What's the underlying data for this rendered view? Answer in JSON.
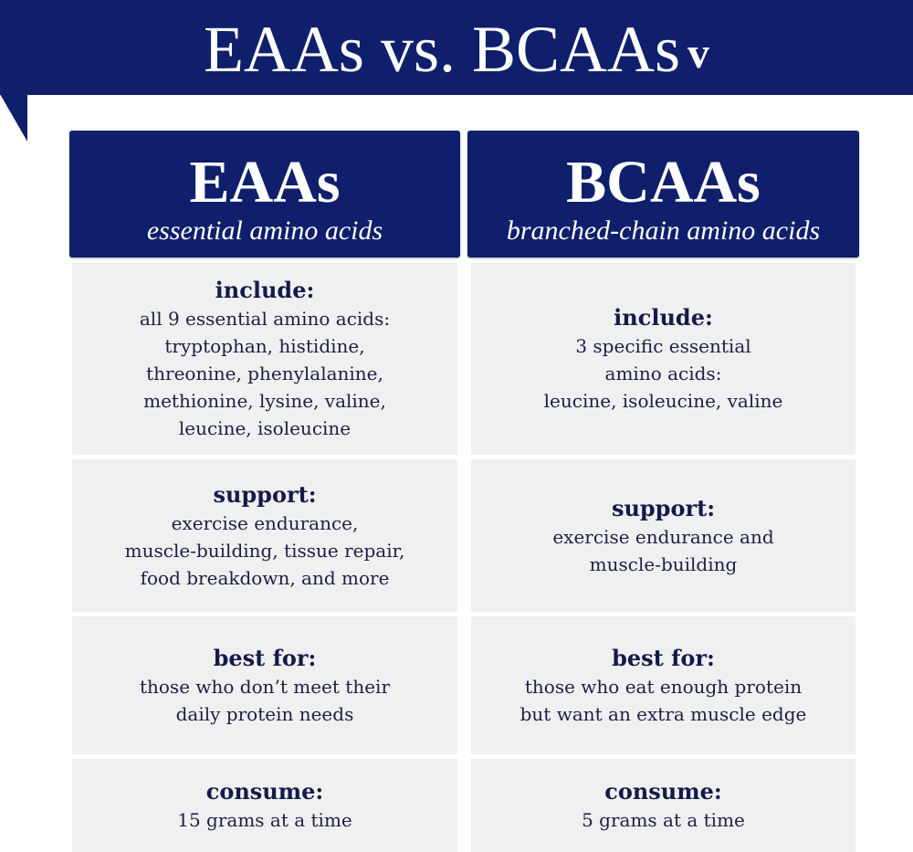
{
  "title": "EAAs vs. BCAAs",
  "logo": "V",
  "colors": {
    "navy": "#0f1f6b",
    "cell": "#f0f0f0"
  },
  "columns": [
    {
      "name": "EAAs",
      "subtitle": "essential amino acids",
      "rows": [
        {
          "label": "include:",
          "text": "all 9 essential amino acids:\ntryptophan, histidine,\nthreonine, phenylalanine,\nmethionine, lysine, valine,\nleucine, isoleucine"
        },
        {
          "label": "support:",
          "text": "exercise endurance,\nmuscle-building, tissue repair,\nfood breakdown, and more"
        },
        {
          "label": "best for:",
          "text": "those who don’t meet their\ndaily protein needs"
        },
        {
          "label": "consume:",
          "text": "15 grams at a time"
        }
      ]
    },
    {
      "name": "BCAAs",
      "subtitle": "branched-chain amino acids",
      "rows": [
        {
          "label": "include:",
          "text": "3 specific essential\namino acids:\nleucine, isoleucine, valine"
        },
        {
          "label": "support:",
          "text": "exercise endurance and\nmuscle-building"
        },
        {
          "label": "best for:",
          "text": "those who eat enough protein\nbut want an extra muscle edge"
        },
        {
          "label": "consume:",
          "text": "5 grams at a time"
        }
      ]
    }
  ]
}
